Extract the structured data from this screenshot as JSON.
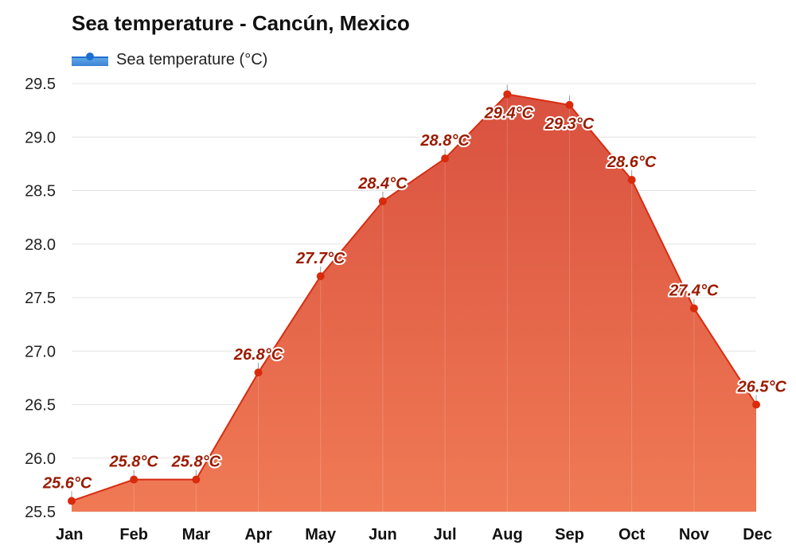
{
  "colors": {
    "area_top": "#d9513f",
    "area_bottom": "#f07a55",
    "line": "#d72d10",
    "marker": "#d92a0c",
    "label": "#9a1a00",
    "grid": "#e3e3e3",
    "legend_blue": "#1f6fd0"
  },
  "chart_data": {
    "type": "area",
    "title": "Sea temperature - Cancún, Mexico",
    "legend": "Sea temperature (°C)",
    "categories": [
      "Jan",
      "Feb",
      "Mar",
      "Apr",
      "May",
      "Jun",
      "Jul",
      "Aug",
      "Sep",
      "Oct",
      "Nov",
      "Dec"
    ],
    "series": [
      {
        "name": "Sea temperature (°C)",
        "values": [
          25.6,
          25.8,
          25.8,
          26.8,
          27.7,
          28.4,
          28.8,
          29.4,
          29.3,
          28.6,
          27.4,
          26.5
        ],
        "labels": [
          "25.6°C",
          "25.8°C",
          "25.8°C",
          "26.8°C",
          "27.7°C",
          "28.4°C",
          "28.8°C",
          "29.4°C",
          "29.3°C",
          "28.6°C",
          "27.4°C",
          "26.5°C"
        ]
      }
    ],
    "y_ticks": [
      "25.5",
      "26.0",
      "26.5",
      "27.0",
      "27.5",
      "28.0",
      "28.5",
      "29.0",
      "29.5"
    ],
    "ylim": [
      25.5,
      29.5
    ],
    "grid": true,
    "legend_position": "top-left"
  }
}
